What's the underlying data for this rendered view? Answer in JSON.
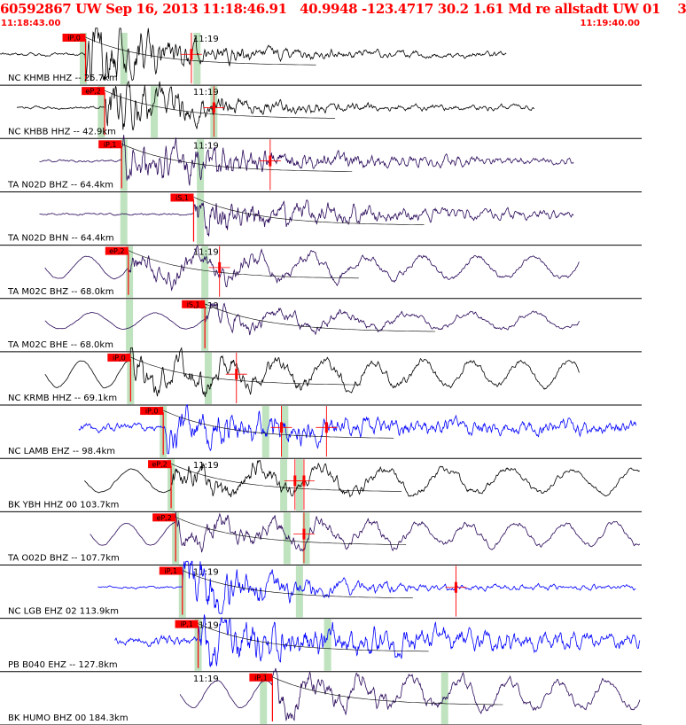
{
  "header": {
    "title": "60592867 UW Sep 16, 2013 11:18:46.91   40.9948 -123.4717 30.2 1.61 Md re allstadt UW 01    3",
    "start_time": "11:18:43.00",
    "end_time": "11:19:40.00"
  },
  "colors": {
    "header_text": "#ff0000",
    "pick_flag": "#ff0000",
    "pick_line": "#ff0000",
    "phase_marker": "#bfe3bf",
    "trace_black": "#000000",
    "trace_purple": "#2a0a5a",
    "trace_blue": "#0000ff",
    "separator": "#000000"
  },
  "chart_data": {
    "type": "seismogram",
    "time_range": [
      "11:18:43.00",
      "11:19:40.00"
    ],
    "minute_tick_label": "11:19",
    "traces": [
      {
        "label": "NC KHMB HHZ -- 25.7km",
        "show_minute": true,
        "color": "black",
        "pick": "iP,0",
        "pick_t": 7.6,
        "start_t": 0.0,
        "end_t": 45.0,
        "shape": "impulsive",
        "amp": 1.0,
        "phase_marks_t": [
          7.4,
          11.0,
          17.5
        ],
        "extra_ticks_t": [
          17.0
        ]
      },
      {
        "label": "NC KHBB HHZ -- 42.9km",
        "show_minute": true,
        "color": "black",
        "pick": "eP,2",
        "pick_t": 9.3,
        "start_t": 1.5,
        "end_t": 47.5,
        "shape": "impulsive",
        "amp": 0.9,
        "phase_marks_t": [
          9.0,
          13.7,
          19.0
        ],
        "extra_ticks_t": [
          19.0
        ]
      },
      {
        "label": "TA N02D BHZ -- 64.4km",
        "show_minute": true,
        "color": "purple",
        "pick": "iP,1",
        "pick_t": 10.8,
        "start_t": 3.5,
        "end_t": 51.0,
        "shape": "emergent",
        "amp": 0.75,
        "phase_marks_t": [
          11.0,
          17.8
        ],
        "extra_ticks_t": [
          24.0
        ]
      },
      {
        "label": "TA N02D BHN -- 64.4km",
        "show_minute": false,
        "color": "purple",
        "pick": "iS,1",
        "pick_t": 17.2,
        "start_t": 3.5,
        "end_t": 51.0,
        "shape": "emergent",
        "amp": 0.7,
        "phase_marks_t": [
          11.0,
          17.8
        ],
        "extra_ticks_t": []
      },
      {
        "label": "TA M02C BHZ -- 68.0km",
        "show_minute": true,
        "color": "purple",
        "pick": "eP,2",
        "pick_t": 11.4,
        "start_t": 4.0,
        "end_t": 51.5,
        "shape": "longperiod",
        "amp": 0.75,
        "phase_marks_t": [
          11.5,
          18.2
        ],
        "extra_ticks_t": [
          19.5
        ]
      },
      {
        "label": "TA M02C BHE -- 68.0km",
        "show_minute": true,
        "color": "purple",
        "pick": "iS,1",
        "pick_t": 18.2,
        "start_t": 4.0,
        "end_t": 51.5,
        "shape": "longperiod",
        "amp": 0.55,
        "phase_marks_t": [
          11.5,
          18.2
        ],
        "extra_ticks_t": []
      },
      {
        "label": "NC KRMB HHZ -- 69.1km",
        "show_minute": false,
        "color": "black",
        "pick": "iP,0",
        "pick_t": 11.6,
        "start_t": 4.0,
        "end_t": 51.5,
        "shape": "longperiod",
        "amp": 0.9,
        "phase_marks_t": [
          11.6,
          18.5
        ],
        "extra_ticks_t": [
          21.0
        ]
      },
      {
        "label": "NC LAMB EHZ -- 98.4km",
        "show_minute": false,
        "color": "blue",
        "pick": "iP,0",
        "pick_t": 14.5,
        "start_t": 7.0,
        "end_t": 56.5,
        "shape": "noisy",
        "amp": 0.6,
        "phase_marks_t": [
          14.5,
          23.6,
          25.3
        ],
        "extra_ticks_t": [
          25.0,
          29.0
        ]
      },
      {
        "label": "BK YBH HHZ 00 103.7km",
        "show_minute": true,
        "color": "black",
        "pick": "eP,2",
        "pick_t": 15.2,
        "start_t": 7.5,
        "end_t": 57.0,
        "shape": "longperiod",
        "amp": 0.8,
        "phase_marks_t": [
          15.2,
          25.2,
          26.6
        ],
        "extra_ticks_t": [
          26.2,
          27.0
        ]
      },
      {
        "label": "TA O02D BHZ -- 107.7km",
        "show_minute": false,
        "color": "purple",
        "pick": "eP,2",
        "pick_t": 15.6,
        "start_t": 8.0,
        "end_t": 57.5,
        "shape": "longperiod",
        "amp": 0.75,
        "phase_marks_t": [
          15.6,
          25.5,
          27.2
        ],
        "extra_ticks_t": [
          27.0
        ]
      },
      {
        "label": "NC LGB EHZ 02 113.9km",
        "show_minute": true,
        "color": "blue",
        "pick": "iP,1",
        "pick_t": 16.2,
        "start_t": 8.7,
        "end_t": 56.5,
        "shape": "impulsive",
        "amp": 0.85,
        "phase_marks_t": [
          16.2,
          26.6
        ],
        "extra_ticks_t": [
          40.5
        ]
      },
      {
        "label": "PB B040 EHZ -- 127.8km",
        "show_minute": true,
        "color": "blue",
        "pick": "iP,1",
        "pick_t": 17.6,
        "start_t": 10.2,
        "end_t": 58.0,
        "shape": "noisy",
        "amp": 0.75,
        "phase_marks_t": [
          17.6,
          29.1
        ],
        "extra_ticks_t": []
      },
      {
        "label": "BK HUMO BHZ 00 184.3km",
        "show_minute": true,
        "color": "purple",
        "pick": "iP,1",
        "pick_t": 24.2,
        "start_t": 16.0,
        "end_t": 57.5,
        "shape": "longperiod",
        "amp": 0.9,
        "phase_marks_t": [
          23.4,
          39.5
        ],
        "extra_ticks_t": []
      }
    ]
  }
}
